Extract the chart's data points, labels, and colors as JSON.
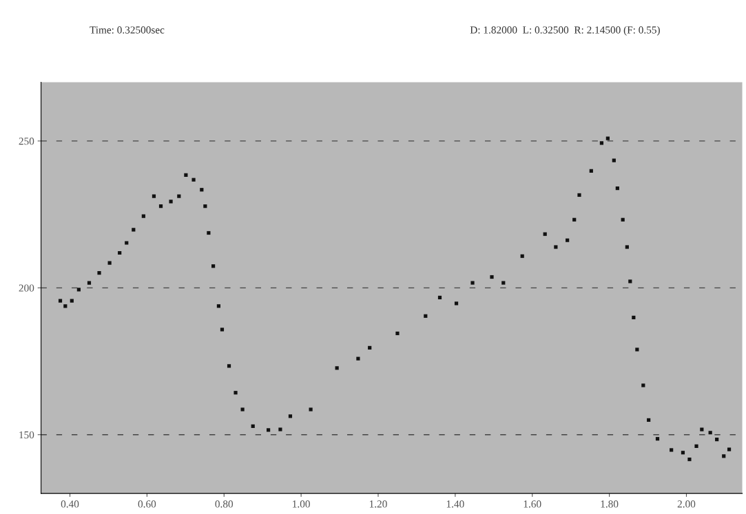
{
  "chart_data": {
    "type": "scatter",
    "marker": "square",
    "grid": "y",
    "line_style": "dashed",
    "annotations": [
      "Time: 0.32500sec",
      "D: 1.82000  L: 0.32500  R: 2.14500 (F: 0.55)"
    ],
    "xlim": [
      0.325,
      2.145
    ],
    "ylim": [
      130,
      270
    ],
    "xticks": [
      {
        "value": 0.4,
        "label": "0.40"
      },
      {
        "value": 0.6,
        "label": "0.60"
      },
      {
        "value": 0.8,
        "label": "0.80"
      },
      {
        "value": 1.0,
        "label": "1.00"
      },
      {
        "value": 1.2,
        "label": "1.20"
      },
      {
        "value": 1.4,
        "label": "1.40"
      },
      {
        "value": 1.6,
        "label": "1.60"
      },
      {
        "value": 1.8,
        "label": "1.80"
      },
      {
        "value": 2.0,
        "label": "2.00"
      }
    ],
    "yticks": [
      150,
      200,
      250
    ],
    "series": [
      {
        "color": "#111111",
        "x": [
          0.375,
          0.388,
          0.405,
          0.423,
          0.45,
          0.476,
          0.503,
          0.529,
          0.547,
          0.565,
          0.591,
          0.618,
          0.636,
          0.662,
          0.683,
          0.701,
          0.721,
          0.742,
          0.751,
          0.76,
          0.772,
          0.786,
          0.795,
          0.813,
          0.83,
          0.848,
          0.875,
          0.915,
          0.946,
          0.972,
          1.025,
          1.093,
          1.148,
          1.178,
          1.25,
          1.323,
          1.36,
          1.403,
          1.445,
          1.495,
          1.525,
          1.574,
          1.633,
          1.661,
          1.691,
          1.709,
          1.722,
          1.753,
          1.78,
          1.796,
          1.812,
          1.821,
          1.835,
          1.846,
          1.854,
          1.863,
          1.872,
          1.888,
          1.902,
          1.925,
          1.961,
          1.991,
          2.008,
          2.026,
          2.04,
          2.062,
          2.079,
          2.097,
          2.111
        ],
        "values": [
          195.6,
          193.8,
          195.6,
          199.4,
          201.7,
          205.1,
          208.5,
          211.9,
          215.3,
          219.8,
          224.4,
          231.2,
          227.8,
          229.4,
          231.2,
          238.4,
          236.8,
          233.4,
          227.8,
          218.7,
          207.4,
          193.8,
          185.8,
          173.4,
          164.3,
          158.6,
          152.9,
          151.6,
          151.8,
          156.3,
          158.6,
          172.7,
          175.9,
          179.6,
          184.5,
          190.4,
          196.7,
          194.7,
          201.7,
          203.7,
          201.7,
          210.8,
          218.3,
          213.9,
          216.2,
          223.2,
          231.6,
          239.8,
          249.3,
          250.9,
          243.4,
          233.9,
          223.2,
          213.9,
          202.2,
          189.9,
          179.0,
          166.8,
          155.0,
          148.6,
          144.8,
          143.9,
          141.6,
          146.1,
          151.8,
          150.7,
          148.4,
          142.7,
          145.0
        ]
      }
    ]
  }
}
